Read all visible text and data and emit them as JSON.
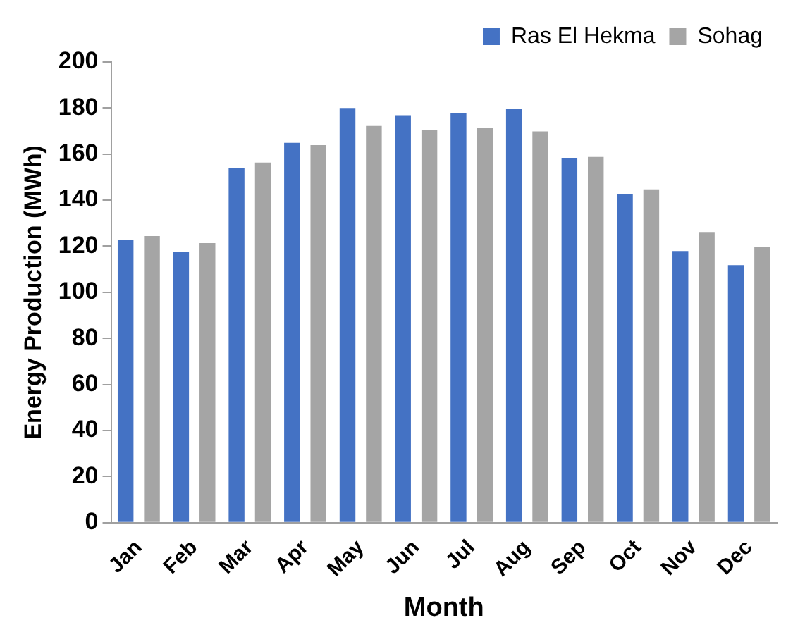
{
  "chart_data": {
    "type": "bar",
    "xlabel": "Month",
    "ylabel": "Energy Production (MWh)",
    "categories": [
      "Jan",
      "Feb",
      "Mar",
      "Apr",
      "May",
      "Jun",
      "Jul",
      "Aug",
      "Sep",
      "Oct",
      "Nov",
      "Dec"
    ],
    "series": [
      {
        "name": "Ras El Hekma",
        "color": "#4472c4",
        "values": [
          122.7,
          117.5,
          154,
          164.9,
          180,
          176.9,
          177.9,
          179.6,
          158.4,
          142.7,
          117.9,
          111.8
        ]
      },
      {
        "name": "Sohag",
        "color": "#a5a5a5",
        "values": [
          124.4,
          121.4,
          156.3,
          163.9,
          172.2,
          170.5,
          171.5,
          169.9,
          158.8,
          144.7,
          126.2,
          119.8
        ]
      }
    ],
    "ylim": [
      0,
      200
    ],
    "yticks": [
      0,
      20,
      40,
      60,
      80,
      100,
      120,
      140,
      160,
      180,
      200
    ],
    "grid": false,
    "legend": "top right"
  }
}
